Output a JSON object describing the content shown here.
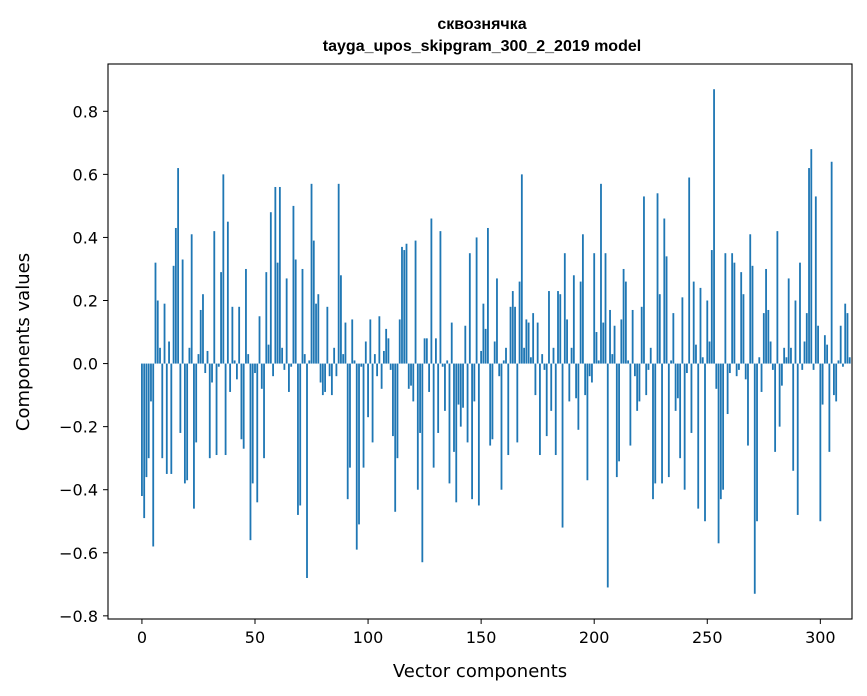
{
  "chart_data": {
    "type": "bar",
    "title": "сквознячка",
    "subtitle": "tayga_upos_skipgram_300_2_2019 model",
    "xlabel": "Vector components",
    "ylabel": "Components values",
    "xlim": [
      -15,
      314
    ],
    "ylim": [
      -0.81,
      0.95
    ],
    "xticks": [
      0,
      50,
      100,
      150,
      200,
      250,
      300
    ],
    "yticks": [
      -0.8,
      -0.6,
      -0.4,
      -0.2,
      0.0,
      0.2,
      0.4,
      0.6,
      0.8
    ],
    "ytick_labels": [
      "−0.8",
      "−0.6",
      "−0.4",
      "−0.2",
      "0.0",
      "0.2",
      "0.4",
      "0.6",
      "0.8"
    ],
    "bar_color": "#1f77b4",
    "grid": false,
    "values": [
      -0.42,
      -0.49,
      -0.36,
      -0.3,
      -0.12,
      -0.58,
      0.32,
      0.2,
      0.05,
      -0.3,
      0.19,
      -0.35,
      0.07,
      -0.35,
      0.31,
      0.43,
      0.62,
      -0.22,
      0.33,
      -0.38,
      -0.37,
      0.05,
      0.41,
      -0.46,
      -0.25,
      0.03,
      0.17,
      0.22,
      -0.03,
      0.04,
      -0.3,
      -0.06,
      0.42,
      -0.29,
      -0.01,
      0.29,
      0.6,
      -0.29,
      0.45,
      -0.09,
      0.18,
      0.01,
      -0.05,
      0.18,
      -0.24,
      -0.27,
      0.3,
      0.03,
      -0.56,
      -0.38,
      -0.03,
      -0.44,
      0.15,
      -0.08,
      -0.3,
      0.29,
      0.06,
      0.48,
      -0.04,
      0.56,
      0.32,
      0.56,
      0.05,
      -0.02,
      0.27,
      -0.09,
      -0.01,
      0.5,
      0.33,
      -0.48,
      -0.45,
      0.3,
      0.03,
      -0.68,
      0.01,
      0.57,
      0.39,
      0.19,
      0.22,
      -0.06,
      -0.1,
      -0.09,
      0.18,
      -0.04,
      -0.1,
      0.05,
      -0.04,
      0.57,
      0.28,
      0.03,
      0.13,
      -0.43,
      -0.33,
      0.14,
      0.01,
      -0.59,
      -0.51,
      -0.01,
      -0.33,
      0.07,
      -0.17,
      0.14,
      -0.25,
      0.03,
      -0.04,
      0.15,
      -0.08,
      0.04,
      0.11,
      0.08,
      -0.02,
      -0.23,
      -0.47,
      -0.3,
      0.14,
      0.37,
      0.36,
      0.38,
      -0.08,
      -0.07,
      -0.12,
      0.39,
      -0.4,
      -0.22,
      -0.63,
      0.08,
      0.08,
      -0.09,
      0.46,
      -0.33,
      0.08,
      -0.22,
      0.42,
      -0.01,
      -0.15,
      0.01,
      -0.38,
      0.13,
      -0.28,
      -0.44,
      -0.13,
      -0.2,
      -0.14,
      0.12,
      -0.25,
      0.35,
      -0.43,
      -0.12,
      0.4,
      -0.45,
      0.04,
      0.19,
      0.11,
      0.43,
      -0.26,
      -0.24,
      0.07,
      0.27,
      -0.04,
      -0.4,
      0.01,
      0.05,
      -0.29,
      0.18,
      0.23,
      0.18,
      -0.25,
      0.26,
      0.6,
      0.05,
      0.14,
      0.13,
      0.02,
      0.16,
      -0.1,
      0.13,
      -0.29,
      0.03,
      -0.02,
      -0.23,
      0.23,
      -0.15,
      0.05,
      -0.29,
      0.23,
      0.22,
      -0.52,
      0.35,
      0.14,
      -0.12,
      0.05,
      0.28,
      -0.11,
      -0.21,
      0.26,
      0.41,
      -0.1,
      -0.37,
      -0.04,
      -0.06,
      0.35,
      0.1,
      0.01,
      0.57,
      0.13,
      0.35,
      -0.71,
      0.17,
      0.03,
      0.12,
      -0.36,
      -0.31,
      0.14,
      0.3,
      0.26,
      0.01,
      -0.26,
      0.17,
      -0.04,
      -0.15,
      -0.12,
      0.18,
      0.53,
      -0.1,
      -0.02,
      0.05,
      -0.43,
      -0.38,
      0.54,
      0.22,
      -0.38,
      0.46,
      0.34,
      -0.36,
      0.01,
      0.16,
      -0.15,
      -0.11,
      -0.3,
      0.21,
      -0.4,
      -0.03,
      0.59,
      -0.22,
      0.26,
      0.06,
      -0.46,
      0.24,
      0.02,
      -0.5,
      0.2,
      0.07,
      0.36,
      0.87,
      -0.08,
      -0.57,
      -0.43,
      -0.4,
      0.35,
      -0.16,
      -0.03,
      0.35,
      0.32,
      -0.04,
      -0.02,
      0.29,
      0.22,
      -0.05,
      -0.26,
      0.41,
      0.31,
      -0.73,
      -0.5,
      0.02,
      -0.09,
      0.16,
      0.3,
      0.17,
      0.07,
      -0.02,
      -0.28,
      0.42,
      -0.2,
      -0.07,
      0.05,
      0.02,
      0.27,
      0.05,
      -0.34,
      0.2,
      -0.48,
      0.32,
      -0.02,
      0.07,
      0.16,
      0.62,
      0.68,
      -0.02,
      0.53,
      0.12,
      -0.5,
      -0.13,
      0.09,
      0.06,
      -0.28,
      0.64,
      -0.1,
      -0.12,
      0.01,
      0.12,
      -0.01,
      0.19,
      0.16,
      0.02
    ]
  }
}
